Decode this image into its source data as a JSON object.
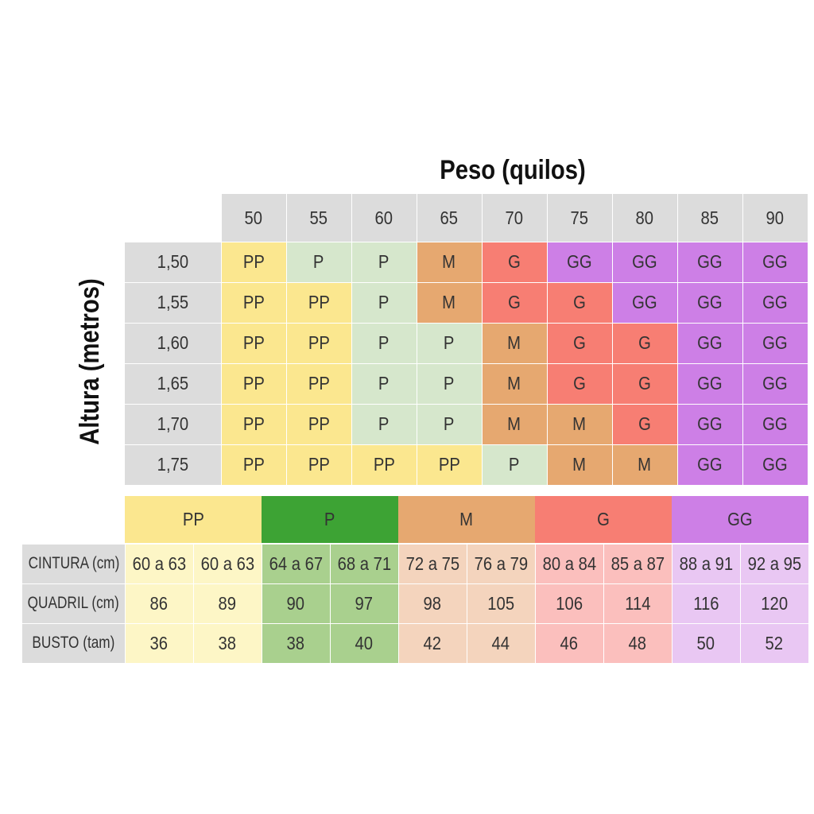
{
  "colors": {
    "header_bg": "#dcdcdc",
    "PP": "#fbe78f",
    "P": "#d6e7cc",
    "M": "#e6a870",
    "G": "#f77e73",
    "GG": "#cd7fe6",
    "legend_PP": "#fbe78f",
    "legend_P": "#3da334",
    "legend_M": "#e6a870",
    "legend_G": "#f77e73",
    "legend_GG": "#cd7fe6",
    "row_PP": "#fdf6c6",
    "row_P": "#a9d08e",
    "row_M": "#f4d4bd",
    "row_G": "#fbbfbd",
    "row_GG": "#e9c7f3"
  },
  "chart_data": [
    {
      "type": "table",
      "title": "Peso (quilos)",
      "ylabel": "Altura (metros)",
      "columns": [
        "50",
        "55",
        "60",
        "65",
        "70",
        "75",
        "80",
        "85",
        "90"
      ],
      "rows": [
        "1,50",
        "1,55",
        "1,60",
        "1,65",
        "1,70",
        "1,75"
      ],
      "cells": [
        [
          "PP",
          "P",
          "P",
          "M",
          "G",
          "GG",
          "GG",
          "GG",
          "GG"
        ],
        [
          "PP",
          "PP",
          "P",
          "M",
          "G",
          "G",
          "GG",
          "GG",
          "GG"
        ],
        [
          "PP",
          "PP",
          "P",
          "P",
          "M",
          "G",
          "G",
          "GG",
          "GG"
        ],
        [
          "PP",
          "PP",
          "P",
          "P",
          "M",
          "G",
          "G",
          "GG",
          "GG"
        ],
        [
          "PP",
          "PP",
          "P",
          "P",
          "M",
          "M",
          "G",
          "GG",
          "GG"
        ],
        [
          "PP",
          "PP",
          "PP",
          "PP",
          "P",
          "M",
          "M",
          "GG",
          "GG"
        ]
      ]
    },
    {
      "type": "table",
      "sizes": [
        "PP",
        "P",
        "M",
        "G",
        "GG"
      ],
      "row_labels": [
        "CINTURA (cm)",
        "QUADRIL (cm)",
        "BUSTO (tam)"
      ],
      "rows": [
        [
          "60 a 63",
          "60 a 63",
          "64 a 67",
          "68 a 71",
          "72 a 75",
          "76 a 79",
          "80 a 84",
          "85 a 87",
          "88 a 91",
          "92 a 95"
        ],
        [
          "86",
          "89",
          "90",
          "97",
          "98",
          "105",
          "106",
          "114",
          "116",
          "120"
        ],
        [
          "36",
          "38",
          "38",
          "40",
          "42",
          "44",
          "46",
          "48",
          "50",
          "52"
        ]
      ]
    }
  ]
}
